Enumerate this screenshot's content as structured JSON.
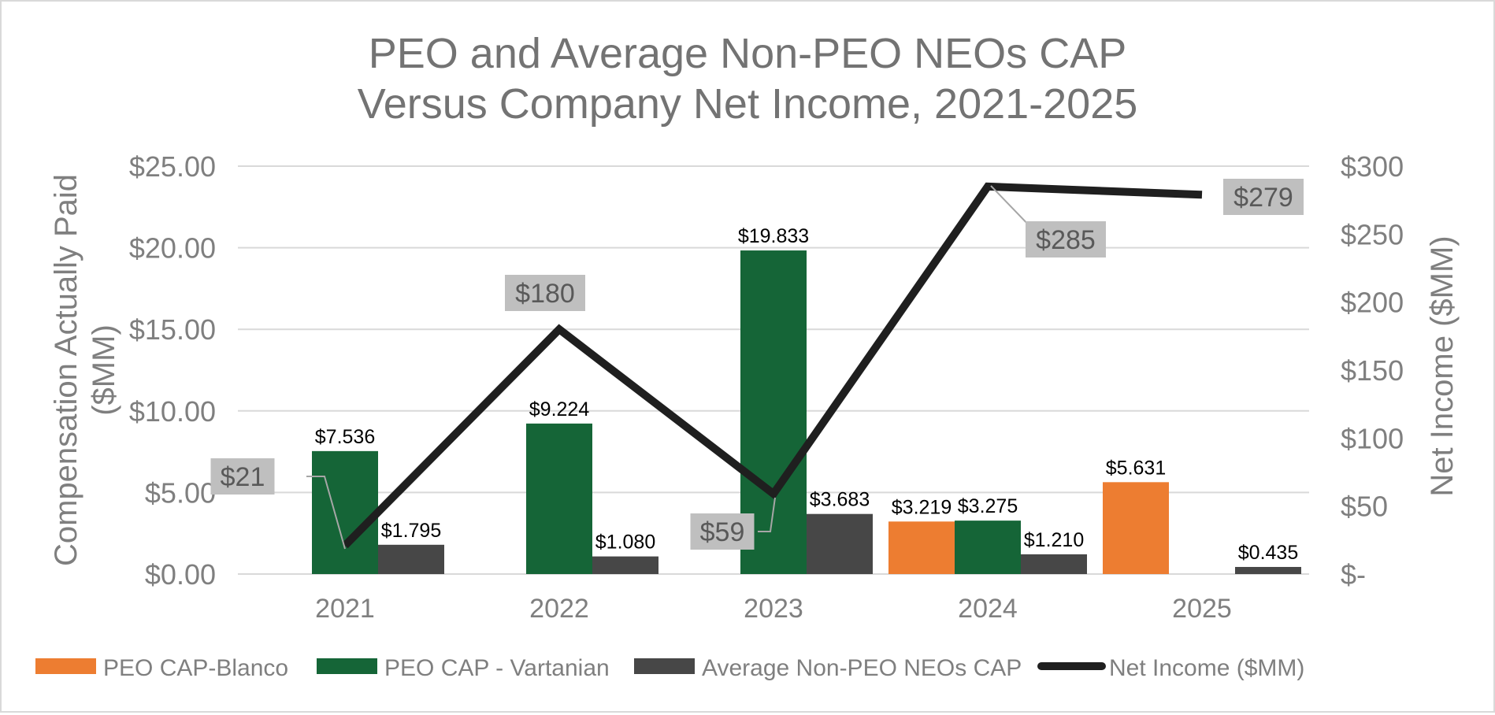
{
  "chart_data": {
    "type": "bar",
    "title": [
      "PEO and Average Non-PEO NEOs CAP",
      "Versus Company Net Income, 2021-2025"
    ],
    "categories": [
      "2021",
      "2022",
      "2023",
      "2024",
      "2025"
    ],
    "ylabel": [
      "Compensation Actually Paid",
      "($MM)"
    ],
    "y2label": "Net Income ($MM)",
    "ylim": [
      0,
      25
    ],
    "y2lim": [
      0,
      300
    ],
    "yticks": [
      {
        "value": 0,
        "label": "$0.00"
      },
      {
        "value": 5,
        "label": "$5.00"
      },
      {
        "value": 10,
        "label": "$10.00"
      },
      {
        "value": 15,
        "label": "$15.00"
      },
      {
        "value": 20,
        "label": "$20.00"
      },
      {
        "value": 25,
        "label": "$25.00"
      }
    ],
    "y2ticks": [
      {
        "value": 0,
        "label": "$-"
      },
      {
        "value": 50,
        "label": "$50"
      },
      {
        "value": 100,
        "label": "$100"
      },
      {
        "value": 150,
        "label": "$150"
      },
      {
        "value": 200,
        "label": "$200"
      },
      {
        "value": 250,
        "label": "$250"
      },
      {
        "value": 300,
        "label": "$300"
      }
    ],
    "grid": true,
    "legend_position": "bottom",
    "series": [
      {
        "name": "PEO CAP-Blanco",
        "color": "#ED7D31",
        "type": "bar",
        "values": [
          null,
          null,
          null,
          3.219,
          5.631
        ],
        "labels": [
          "",
          "",
          "",
          "$3.219",
          "$5.631"
        ]
      },
      {
        "name": "PEO CAP - Vartanian",
        "color": "#156537",
        "type": "bar",
        "values": [
          7.536,
          9.224,
          19.833,
          3.275,
          null
        ],
        "labels": [
          "$7.536",
          "$9.224",
          "$19.833",
          "$3.275",
          ""
        ]
      },
      {
        "name": "Average Non-PEO NEOs CAP",
        "color": "#474747",
        "type": "bar",
        "values": [
          1.795,
          1.08,
          3.683,
          1.21,
          0.435
        ],
        "labels": [
          "$1.795",
          "$1.080",
          "$3.683",
          "$1.210",
          "$0.435"
        ]
      },
      {
        "name": "Net Income ($MM)",
        "color": "#1f1f1f",
        "type": "line",
        "axis": "secondary",
        "values": [
          21,
          180,
          59,
          285,
          279
        ],
        "labels": [
          "$21",
          "$180",
          "$59",
          "$285",
          "$279"
        ]
      }
    ]
  }
}
